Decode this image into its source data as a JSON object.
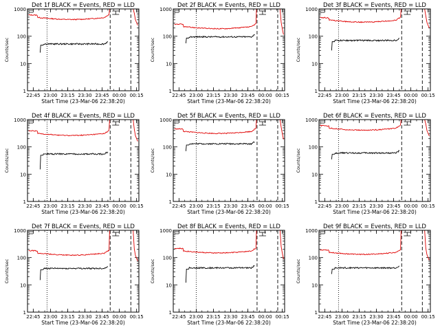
{
  "chart_data": [
    {
      "type": "line",
      "title": "Det 1f BLACK = Events, RED = LLD",
      "xlabel": "Start Time (23-Mar-06 22:38:20)",
      "ylabel": "Counts/sec",
      "xticks": [
        "22:45",
        "23:00",
        "23:15",
        "23:30",
        "23:45",
        "00:00",
        "00:15"
      ],
      "yticks": [
        "1",
        "10",
        "100",
        "1000"
      ],
      "ylim": [
        1,
        1000
      ],
      "yscale": "log",
      "red_level": 500,
      "black_level": 52,
      "black_start": 25,
      "dotted_x": "22:57",
      "dashed_x": [
        "23:52",
        "00:10"
      ]
    },
    {
      "type": "line",
      "title": "Det 2f BLACK = Events, RED = LLD",
      "xlabel": "Start Time (23-Mar-06 22:38:20)",
      "ylabel": "Counts/sec",
      "xticks": [
        "22:45",
        "23:00",
        "23:15",
        "23:30",
        "23:45",
        "00:00",
        "00:15"
      ],
      "yticks": [
        "1",
        "10",
        "100",
        "1000"
      ],
      "ylim": [
        1,
        1000
      ],
      "yscale": "log",
      "red_level": 230,
      "black_level": 95,
      "black_start": 55,
      "dotted_x": "23:00",
      "dashed_x": [
        "23:53",
        "00:11"
      ]
    },
    {
      "type": "line",
      "title": "Det 3f BLACK = Events, RED = LLD",
      "xlabel": "Start Time (23-Mar-06 22:38:20)",
      "ylabel": "Counts/sec",
      "xticks": [
        "22:45",
        "23:00",
        "23:15",
        "23:30",
        "23:45",
        "00:00",
        "00:15"
      ],
      "yticks": [
        "1",
        "10",
        "100",
        "1000"
      ],
      "ylim": [
        1,
        1000
      ],
      "yscale": "log",
      "red_level": 400,
      "black_level": 70,
      "black_start": 30,
      "dotted_x": "22:57",
      "dashed_x": [
        "23:52",
        "00:10"
      ]
    },
    {
      "type": "line",
      "title": "Det 4f BLACK = Events, RED = LLD",
      "xlabel": "Start Time (23-Mar-06 22:38:20)",
      "ylabel": "Counts/sec",
      "xticks": [
        "22:45",
        "23:00",
        "23:15",
        "23:30",
        "23:45",
        "00:00",
        "00:15"
      ],
      "yticks": [
        "1",
        "10",
        "100",
        "1000"
      ],
      "ylim": [
        1,
        1000
      ],
      "yscale": "log",
      "red_level": 320,
      "black_level": 55,
      "black_start": 15,
      "dotted_x": "22:57",
      "dashed_x": [
        "23:52",
        "00:10"
      ]
    },
    {
      "type": "line",
      "title": "Det 5f BLACK = Events, RED = LLD",
      "xlabel": "Start Time (23-Mar-06 22:38:20)",
      "ylabel": "Counts/sec",
      "xticks": [
        "22:45",
        "23:00",
        "23:15",
        "23:30",
        "23:45",
        "00:00",
        "00:15"
      ],
      "yticks": [
        "1",
        "10",
        "100",
        "1000"
      ],
      "ylim": [
        1,
        1000
      ],
      "yscale": "log",
      "red_level": 380,
      "black_level": 130,
      "black_start": 70,
      "dotted_x": "23:00",
      "dashed_x": [
        "23:53",
        "00:11"
      ]
    },
    {
      "type": "line",
      "title": "Det 6f BLACK = Events, RED = LLD",
      "xlabel": "Start Time (23-Mar-06 22:38:20)",
      "ylabel": "Counts/sec",
      "xticks": [
        "22:45",
        "23:00",
        "23:15",
        "23:30",
        "23:45",
        "00:00",
        "00:15"
      ],
      "yticks": [
        "1",
        "10",
        "100",
        "1000"
      ],
      "ylim": [
        1,
        1000
      ],
      "yscale": "log",
      "red_level": 500,
      "black_level": 60,
      "black_start": 35,
      "dotted_x": "22:57",
      "dashed_x": [
        "23:52",
        "00:10"
      ]
    },
    {
      "type": "line",
      "title": "Det 7f BLACK = Events, RED = LLD",
      "xlabel": "Start Time (23-Mar-06 22:38:20)",
      "ylabel": "Counts/sec",
      "xticks": [
        "22:45",
        "23:00",
        "23:15",
        "23:30",
        "23:45",
        "00:00",
        "00:15"
      ],
      "yticks": [
        "1",
        "10",
        "100",
        "1000"
      ],
      "ylim": [
        1,
        1000
      ],
      "yscale": "log",
      "red_level": 150,
      "black_level": 40,
      "black_start": 15,
      "dotted_x": "22:57",
      "dashed_x": [
        "23:52",
        "00:10"
      ]
    },
    {
      "type": "line",
      "title": "Det 8f BLACK = Events, RED = LLD",
      "xlabel": "Start Time (23-Mar-06 22:38:20)",
      "ylabel": "Counts/sec",
      "xticks": [
        "22:45",
        "23:00",
        "23:15",
        "23:30",
        "23:45",
        "00:00",
        "00:15"
      ],
      "yticks": [
        "1",
        "10",
        "100",
        "1000"
      ],
      "ylim": [
        1,
        1000
      ],
      "yscale": "log",
      "red_level": 180,
      "black_level": 42,
      "black_start": 12,
      "dotted_x": "23:00",
      "dashed_x": [
        "23:53",
        "00:11"
      ]
    },
    {
      "type": "line",
      "title": "Det 9f BLACK = Events, RED = LLD",
      "xlabel": "Start Time (23-Mar-06 22:38:20)",
      "ylabel": "Counts/sec",
      "xticks": [
        "22:45",
        "23:00",
        "23:15",
        "23:30",
        "23:45",
        "00:00",
        "00:15"
      ],
      "yticks": [
        "1",
        "10",
        "100",
        "1000"
      ],
      "ylim": [
        1,
        1000
      ],
      "yscale": "log",
      "red_level": 160,
      "black_level": 42,
      "black_start": 25,
      "dotted_x": "22:57",
      "dashed_x": [
        "23:52",
        "00:10"
      ]
    }
  ],
  "colors": {
    "events": "#000000",
    "lld": "#e00000",
    "background": "#ffffff",
    "axes": "#000000"
  }
}
